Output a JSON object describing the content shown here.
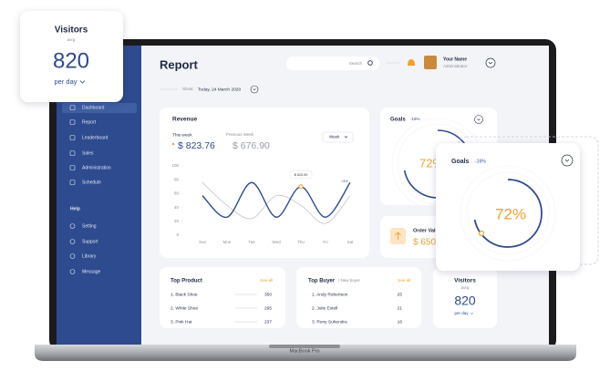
{
  "visitors_card": {
    "title": "Visitors",
    "subtitle": "avrg",
    "value": "820",
    "period": "per day"
  },
  "sidebar": {
    "menu": [
      "Dashboard",
      "Report",
      "Leaderboard",
      "Sales",
      "Administration",
      "Schedule"
    ],
    "help_title": "Help",
    "help": [
      "Setting",
      "Support",
      "Library",
      "Message"
    ]
  },
  "header": {
    "title": "Report",
    "search": "Search",
    "user_name": "Your Name",
    "user_role": "Administrator",
    "show_label": "Show:",
    "date": "Today, 24 March 2020"
  },
  "revenue": {
    "title": "Revenue",
    "this_week_label": "This week",
    "this_week": "$ 823.76",
    "previous_week_label": "Previous Week",
    "previous_week": "$ 676.90",
    "period": "Week",
    "tooltip": "$ 620.00",
    "change": "+4%",
    "chart": {
      "type": "line",
      "categories": [
        "Sun",
        "Mon",
        "Tue",
        "Wed",
        "Thu",
        "Fri",
        "Sat"
      ],
      "ylim": [
        0,
        100
      ],
      "yticks": [
        0,
        20,
        40,
        60,
        80,
        100
      ],
      "series": [
        {
          "color": "#c9ccd3",
          "values": [
            76,
            43,
            24,
            57,
            43,
            17,
            57
          ]
        },
        {
          "color": "#2d4b8e",
          "values": [
            57,
            26,
            76,
            26,
            70,
            26,
            76
          ]
        }
      ]
    }
  },
  "goals": {
    "title": "Goals",
    "change": "-16%",
    "percent": "72%"
  },
  "order": {
    "title": "Order Value",
    "value": "$ 650"
  },
  "top_product": {
    "title": "Top Product",
    "see_all": "See all",
    "rows": [
      [
        "1. Black Shoe",
        350
      ],
      [
        "2. White Shoe",
        295
      ],
      [
        "3. Pink Hat",
        237
      ]
    ]
  },
  "top_buyer": {
    "title": "Top Buyer",
    "subtitle": "/ New buyer",
    "see_all": "See all",
    "rows": [
      [
        "1. Andy Robertson",
        25
      ],
      [
        "2. Julie Estell",
        21
      ],
      [
        "3. Rony Suhendra",
        16
      ]
    ]
  },
  "visitors_small": {
    "title": "Visitors",
    "subtitle": "avrg",
    "value": "820",
    "period": "per day"
  },
  "goals_popup": {
    "title": "Goals",
    "change": "-16%",
    "percent": "72%"
  },
  "laptop_label": "MacBook Pro"
}
